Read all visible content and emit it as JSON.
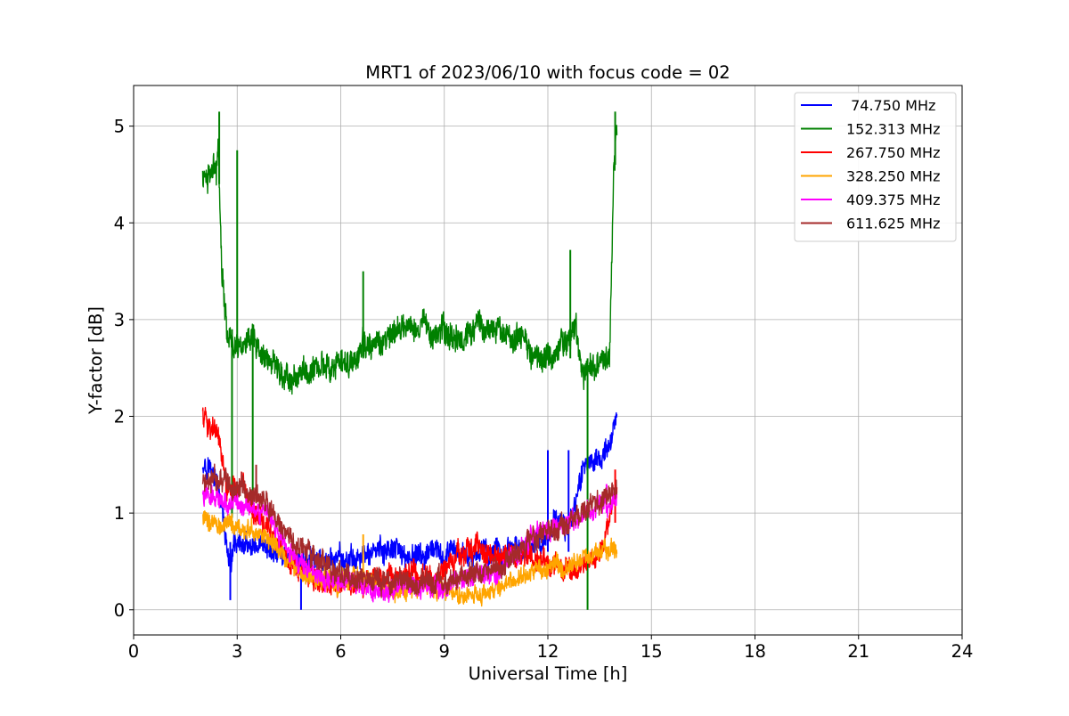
{
  "chart_data": {
    "type": "line",
    "title": "MRT1 of 2023/06/10 with focus code = 02",
    "xlabel": "Universal Time [h]",
    "ylabel": "Y-factor [dB]",
    "xlim": [
      0,
      24
    ],
    "ylim": [
      -0.26,
      5.42
    ],
    "xticks": [
      0,
      3,
      6,
      9,
      12,
      15,
      18,
      21,
      24
    ],
    "xtick_labels": [
      "0",
      "3",
      "6",
      "9",
      "12",
      "15",
      "18",
      "21",
      "24"
    ],
    "yticks": [
      0,
      1,
      2,
      3,
      4,
      5
    ],
    "ytick_labels": [
      "0",
      "1",
      "2",
      "3",
      "4",
      "5"
    ],
    "grid": true,
    "legend_position": "top-right",
    "series": [
      {
        "name": " 74.750 MHz",
        "color": "#0000ff",
        "x": [
          2.0,
          2.2,
          2.4,
          2.6,
          2.7,
          2.8,
          2.9,
          3.0,
          3.2,
          3.5,
          4.0,
          4.5,
          5.0,
          5.5,
          6.0,
          6.5,
          7.0,
          7.5,
          8.0,
          8.5,
          9.0,
          9.5,
          10.0,
          10.5,
          11.0,
          11.5,
          11.9,
          12.2,
          12.6,
          13.0,
          13.2,
          13.5,
          13.8,
          14.0
        ],
        "y": [
          1.55,
          1.5,
          1.3,
          0.95,
          0.6,
          0.35,
          0.65,
          0.7,
          0.65,
          0.6,
          0.6,
          0.55,
          0.5,
          0.5,
          0.5,
          0.55,
          0.6,
          0.6,
          0.55,
          0.55,
          0.55,
          0.6,
          0.6,
          0.6,
          0.6,
          0.65,
          0.7,
          0.95,
          0.85,
          1.45,
          1.5,
          1.6,
          1.7,
          1.95
        ],
        "band": 0.12,
        "spikes": [
          {
            "x": 2.8,
            "lo": 0.1,
            "hi": 0.7
          },
          {
            "x": 4.85,
            "lo": 0.0,
            "hi": 0.55
          },
          {
            "x": 12.0,
            "lo": 0.6,
            "hi": 1.65
          },
          {
            "x": 12.6,
            "lo": 0.6,
            "hi": 1.65
          }
        ]
      },
      {
        "name": "152.313 MHz",
        "color": "#008000",
        "x": [
          2.0,
          2.2,
          2.4,
          2.45,
          2.55,
          2.7,
          3.0,
          3.3,
          3.6,
          4.0,
          4.5,
          5.0,
          5.5,
          6.0,
          6.5,
          7.0,
          7.5,
          8.0,
          8.5,
          9.0,
          9.5,
          10.0,
          10.5,
          11.0,
          11.5,
          12.0,
          12.3,
          12.6,
          12.8,
          13.0,
          13.3,
          13.6,
          13.8,
          13.9,
          14.0
        ],
        "y": [
          4.45,
          4.5,
          4.55,
          4.9,
          3.6,
          2.9,
          2.7,
          2.8,
          2.65,
          2.55,
          2.4,
          2.45,
          2.55,
          2.5,
          2.65,
          2.75,
          2.85,
          2.95,
          2.95,
          2.85,
          2.8,
          2.95,
          2.9,
          2.8,
          2.7,
          2.6,
          2.7,
          2.85,
          2.95,
          2.5,
          2.5,
          2.6,
          2.65,
          4.5,
          5.0
        ],
        "band": 0.14,
        "spikes": [
          {
            "x": 2.48,
            "lo": 4.4,
            "hi": 5.15
          },
          {
            "x": 2.85,
            "lo": 0.95,
            "hi": 2.9
          },
          {
            "x": 3.0,
            "lo": 2.7,
            "hi": 4.75
          },
          {
            "x": 3.45,
            "lo": 1.1,
            "hi": 2.9
          },
          {
            "x": 6.65,
            "lo": 2.6,
            "hi": 3.5
          },
          {
            "x": 12.65,
            "lo": 2.6,
            "hi": 3.72
          },
          {
            "x": 13.15,
            "lo": 0.0,
            "hi": 2.6
          },
          {
            "x": 13.95,
            "lo": 4.6,
            "hi": 5.15
          }
        ]
      },
      {
        "name": "267.750 MHz",
        "color": "#ff0000",
        "x": [
          2.0,
          2.3,
          2.5,
          2.7,
          3.0,
          3.5,
          4.0,
          4.5,
          5.0,
          5.5,
          6.0,
          6.5,
          7.0,
          7.5,
          8.0,
          8.5,
          9.0,
          9.5,
          10.0,
          10.5,
          11.0,
          11.5,
          12.0,
          12.5,
          13.0,
          13.5,
          14.0
        ],
        "y": [
          2.0,
          1.9,
          1.7,
          1.2,
          1.25,
          1.05,
          0.75,
          0.45,
          0.35,
          0.25,
          0.25,
          0.3,
          0.3,
          0.35,
          0.4,
          0.35,
          0.4,
          0.6,
          0.65,
          0.55,
          0.55,
          0.55,
          0.5,
          0.45,
          0.45,
          0.6,
          1.2
        ],
        "band": 0.12,
        "spikes": [
          {
            "x": 13.95,
            "lo": 0.9,
            "hi": 1.45
          }
        ]
      },
      {
        "name": "328.250 MHz",
        "color": "#ffa500",
        "x": [
          2.0,
          2.5,
          3.0,
          3.5,
          4.0,
          4.5,
          5.0,
          5.5,
          6.0,
          6.5,
          7.0,
          7.5,
          8.0,
          8.5,
          9.0,
          9.5,
          10.0,
          10.5,
          11.0,
          11.5,
          12.0,
          12.5,
          13.0,
          13.5,
          14.0
        ],
        "y": [
          0.95,
          0.9,
          0.85,
          0.8,
          0.7,
          0.5,
          0.35,
          0.3,
          0.3,
          0.3,
          0.25,
          0.2,
          0.2,
          0.2,
          0.2,
          0.15,
          0.15,
          0.2,
          0.3,
          0.35,
          0.45,
          0.45,
          0.5,
          0.6,
          0.65
        ],
        "band": 0.1,
        "spikes": [
          {
            "x": 6.65,
            "lo": 0.2,
            "hi": 0.78
          }
        ]
      },
      {
        "name": "409.375 MHz",
        "color": "#ff00ff",
        "x": [
          2.0,
          2.5,
          3.0,
          3.5,
          4.0,
          4.5,
          5.0,
          5.5,
          6.0,
          6.5,
          7.0,
          7.5,
          8.0,
          8.5,
          9.0,
          9.5,
          10.0,
          10.5,
          11.0,
          11.5,
          12.0,
          12.5,
          13.0,
          13.5,
          14.0
        ],
        "y": [
          1.2,
          1.15,
          1.1,
          1.1,
          0.9,
          0.6,
          0.45,
          0.3,
          0.3,
          0.25,
          0.2,
          0.2,
          0.25,
          0.2,
          0.25,
          0.3,
          0.35,
          0.4,
          0.55,
          0.75,
          0.85,
          0.9,
          1.0,
          1.05,
          1.1
        ],
        "band": 0.1,
        "spikes": [
          {
            "x": 13.7,
            "lo": 1.0,
            "hi": 1.3
          }
        ]
      },
      {
        "name": "611.625 MHz",
        "color": "#a52a2a",
        "x": [
          2.0,
          2.5,
          3.0,
          3.5,
          4.0,
          4.5,
          5.0,
          5.5,
          6.0,
          6.5,
          7.0,
          7.5,
          8.0,
          8.5,
          9.0,
          9.5,
          10.0,
          10.5,
          11.0,
          11.5,
          12.0,
          12.5,
          13.0,
          13.5,
          14.0
        ],
        "y": [
          1.3,
          1.35,
          1.25,
          1.2,
          1.0,
          0.75,
          0.6,
          0.5,
          0.35,
          0.3,
          0.3,
          0.25,
          0.3,
          0.3,
          0.25,
          0.35,
          0.35,
          0.45,
          0.55,
          0.7,
          0.8,
          0.85,
          1.0,
          1.15,
          1.25
        ],
        "band": 0.12,
        "spikes": [
          {
            "x": 3.55,
            "lo": 1.1,
            "hi": 1.5
          }
        ]
      }
    ]
  }
}
